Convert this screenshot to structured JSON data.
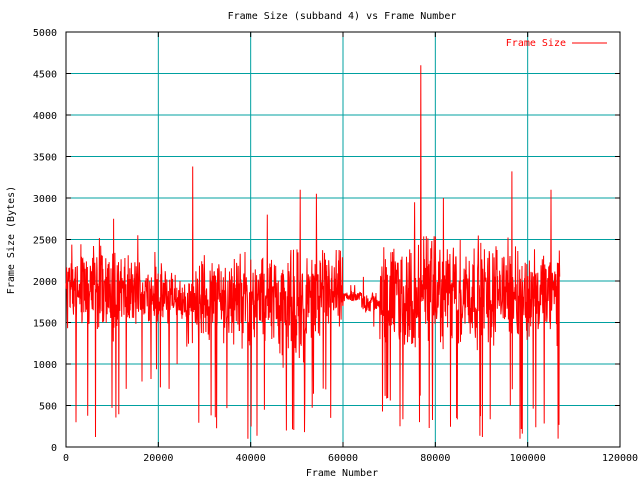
{
  "chart_data": {
    "type": "line",
    "title": "Frame Size (subband 4) vs Frame Number",
    "xlabel": "Frame Number",
    "ylabel": "Frame Size (Bytes)",
    "xlim": [
      0,
      120000
    ],
    "ylim": [
      0,
      5000
    ],
    "x_ticks": [
      0,
      20000,
      40000,
      60000,
      80000,
      100000,
      120000
    ],
    "y_ticks": [
      0,
      500,
      1000,
      1500,
      2000,
      2500,
      3000,
      3500,
      4000,
      4500,
      5000
    ],
    "grid": true,
    "legend_position": "top-right",
    "series": [
      {
        "name": "Frame Size",
        "color": "#ff0000",
        "x_start": 0,
        "x_end": 107000,
        "segments": [
          {
            "x": [
              0,
              12000
            ],
            "base": 1900,
            "spread": 650,
            "min": 120,
            "max": 2750
          },
          {
            "x": [
              12000,
              18000
            ],
            "base": 1850,
            "spread": 500,
            "min": 700,
            "max": 2550
          },
          {
            "x": [
              18000,
              24000
            ],
            "base": 1800,
            "spread": 450,
            "min": 700,
            "max": 2350
          },
          {
            "x": [
              24000,
              28000
            ],
            "base": 1750,
            "spread": 300,
            "min": 1000,
            "max": 3380
          },
          {
            "x": [
              28000,
              45000
            ],
            "base": 1800,
            "spread": 650,
            "min": 100,
            "max": 2800
          },
          {
            "x": [
              45000,
              52000
            ],
            "base": 1700,
            "spread": 800,
            "min": 180,
            "max": 3100
          },
          {
            "x": [
              52000,
              60000
            ],
            "base": 1800,
            "spread": 650,
            "min": 350,
            "max": 3050
          },
          {
            "x": [
              60000,
              64000
            ],
            "base": 1820,
            "spread": 80,
            "min": 1700,
            "max": 1950
          },
          {
            "x": [
              64000,
              68000
            ],
            "base": 1750,
            "spread": 150,
            "min": 1450,
            "max": 2050
          },
          {
            "x": [
              68000,
              76000
            ],
            "base": 1800,
            "spread": 750,
            "min": 250,
            "max": 2950
          },
          {
            "x": [
              76000,
              77000
            ],
            "base": 1800,
            "spread": 800,
            "min": 300,
            "max": 4600
          },
          {
            "x": [
              77000,
              93000
            ],
            "base": 1850,
            "spread": 750,
            "min": 120,
            "max": 3000
          },
          {
            "x": [
              93000,
              98000
            ],
            "base": 1900,
            "spread": 650,
            "min": 500,
            "max": 3320
          },
          {
            "x": [
              98000,
              107000
            ],
            "base": 1800,
            "spread": 650,
            "min": 100,
            "max": 3100
          }
        ]
      }
    ]
  }
}
